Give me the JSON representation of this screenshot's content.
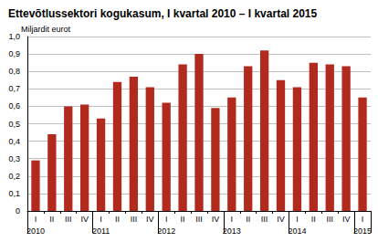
{
  "chart_data": {
    "type": "bar",
    "title": "Ettevõtlussektori kogukasum, I kvartal 2010 – I kvartal 2015",
    "y_label": "Miljardit eurot",
    "categories": [
      "I",
      "II",
      "III",
      "IV",
      "I",
      "II",
      "III",
      "IV",
      "I",
      "II",
      "III",
      "IV",
      "I",
      "II",
      "III",
      "IV",
      "I",
      "II",
      "III",
      "IV",
      "I"
    ],
    "year_labels": [
      "2010",
      null,
      null,
      null,
      "2011",
      null,
      null,
      null,
      "2012",
      null,
      null,
      null,
      "2013",
      null,
      null,
      null,
      "2014",
      null,
      null,
      null,
      "2015"
    ],
    "values": [
      0.29,
      0.44,
      0.6,
      0.61,
      0.53,
      0.74,
      0.77,
      0.71,
      0.62,
      0.84,
      0.9,
      0.59,
      0.65,
      0.83,
      0.92,
      0.75,
      0.71,
      0.85,
      0.84,
      0.83,
      0.65
    ],
    "color": "#b22a1e",
    "ylim": [
      0,
      1
    ],
    "yticks": [
      0,
      {
        "value": 0.1,
        "label": "0,1"
      },
      {
        "value": 0.2,
        "label": "0,2"
      },
      {
        "value": 0.3,
        "label": "0,3"
      },
      {
        "value": 0.4,
        "label": "0,4"
      },
      {
        "value": 0.5,
        "label": "0,5"
      },
      {
        "value": 0.6,
        "label": "0,6"
      },
      {
        "value": 0.7,
        "label": "0,7"
      },
      {
        "value": 0.8,
        "label": "0,8"
      },
      {
        "value": 0.9,
        "label": "0,9"
      },
      {
        "value": 1,
        "label": "1,0"
      }
    ],
    "grid": true
  }
}
